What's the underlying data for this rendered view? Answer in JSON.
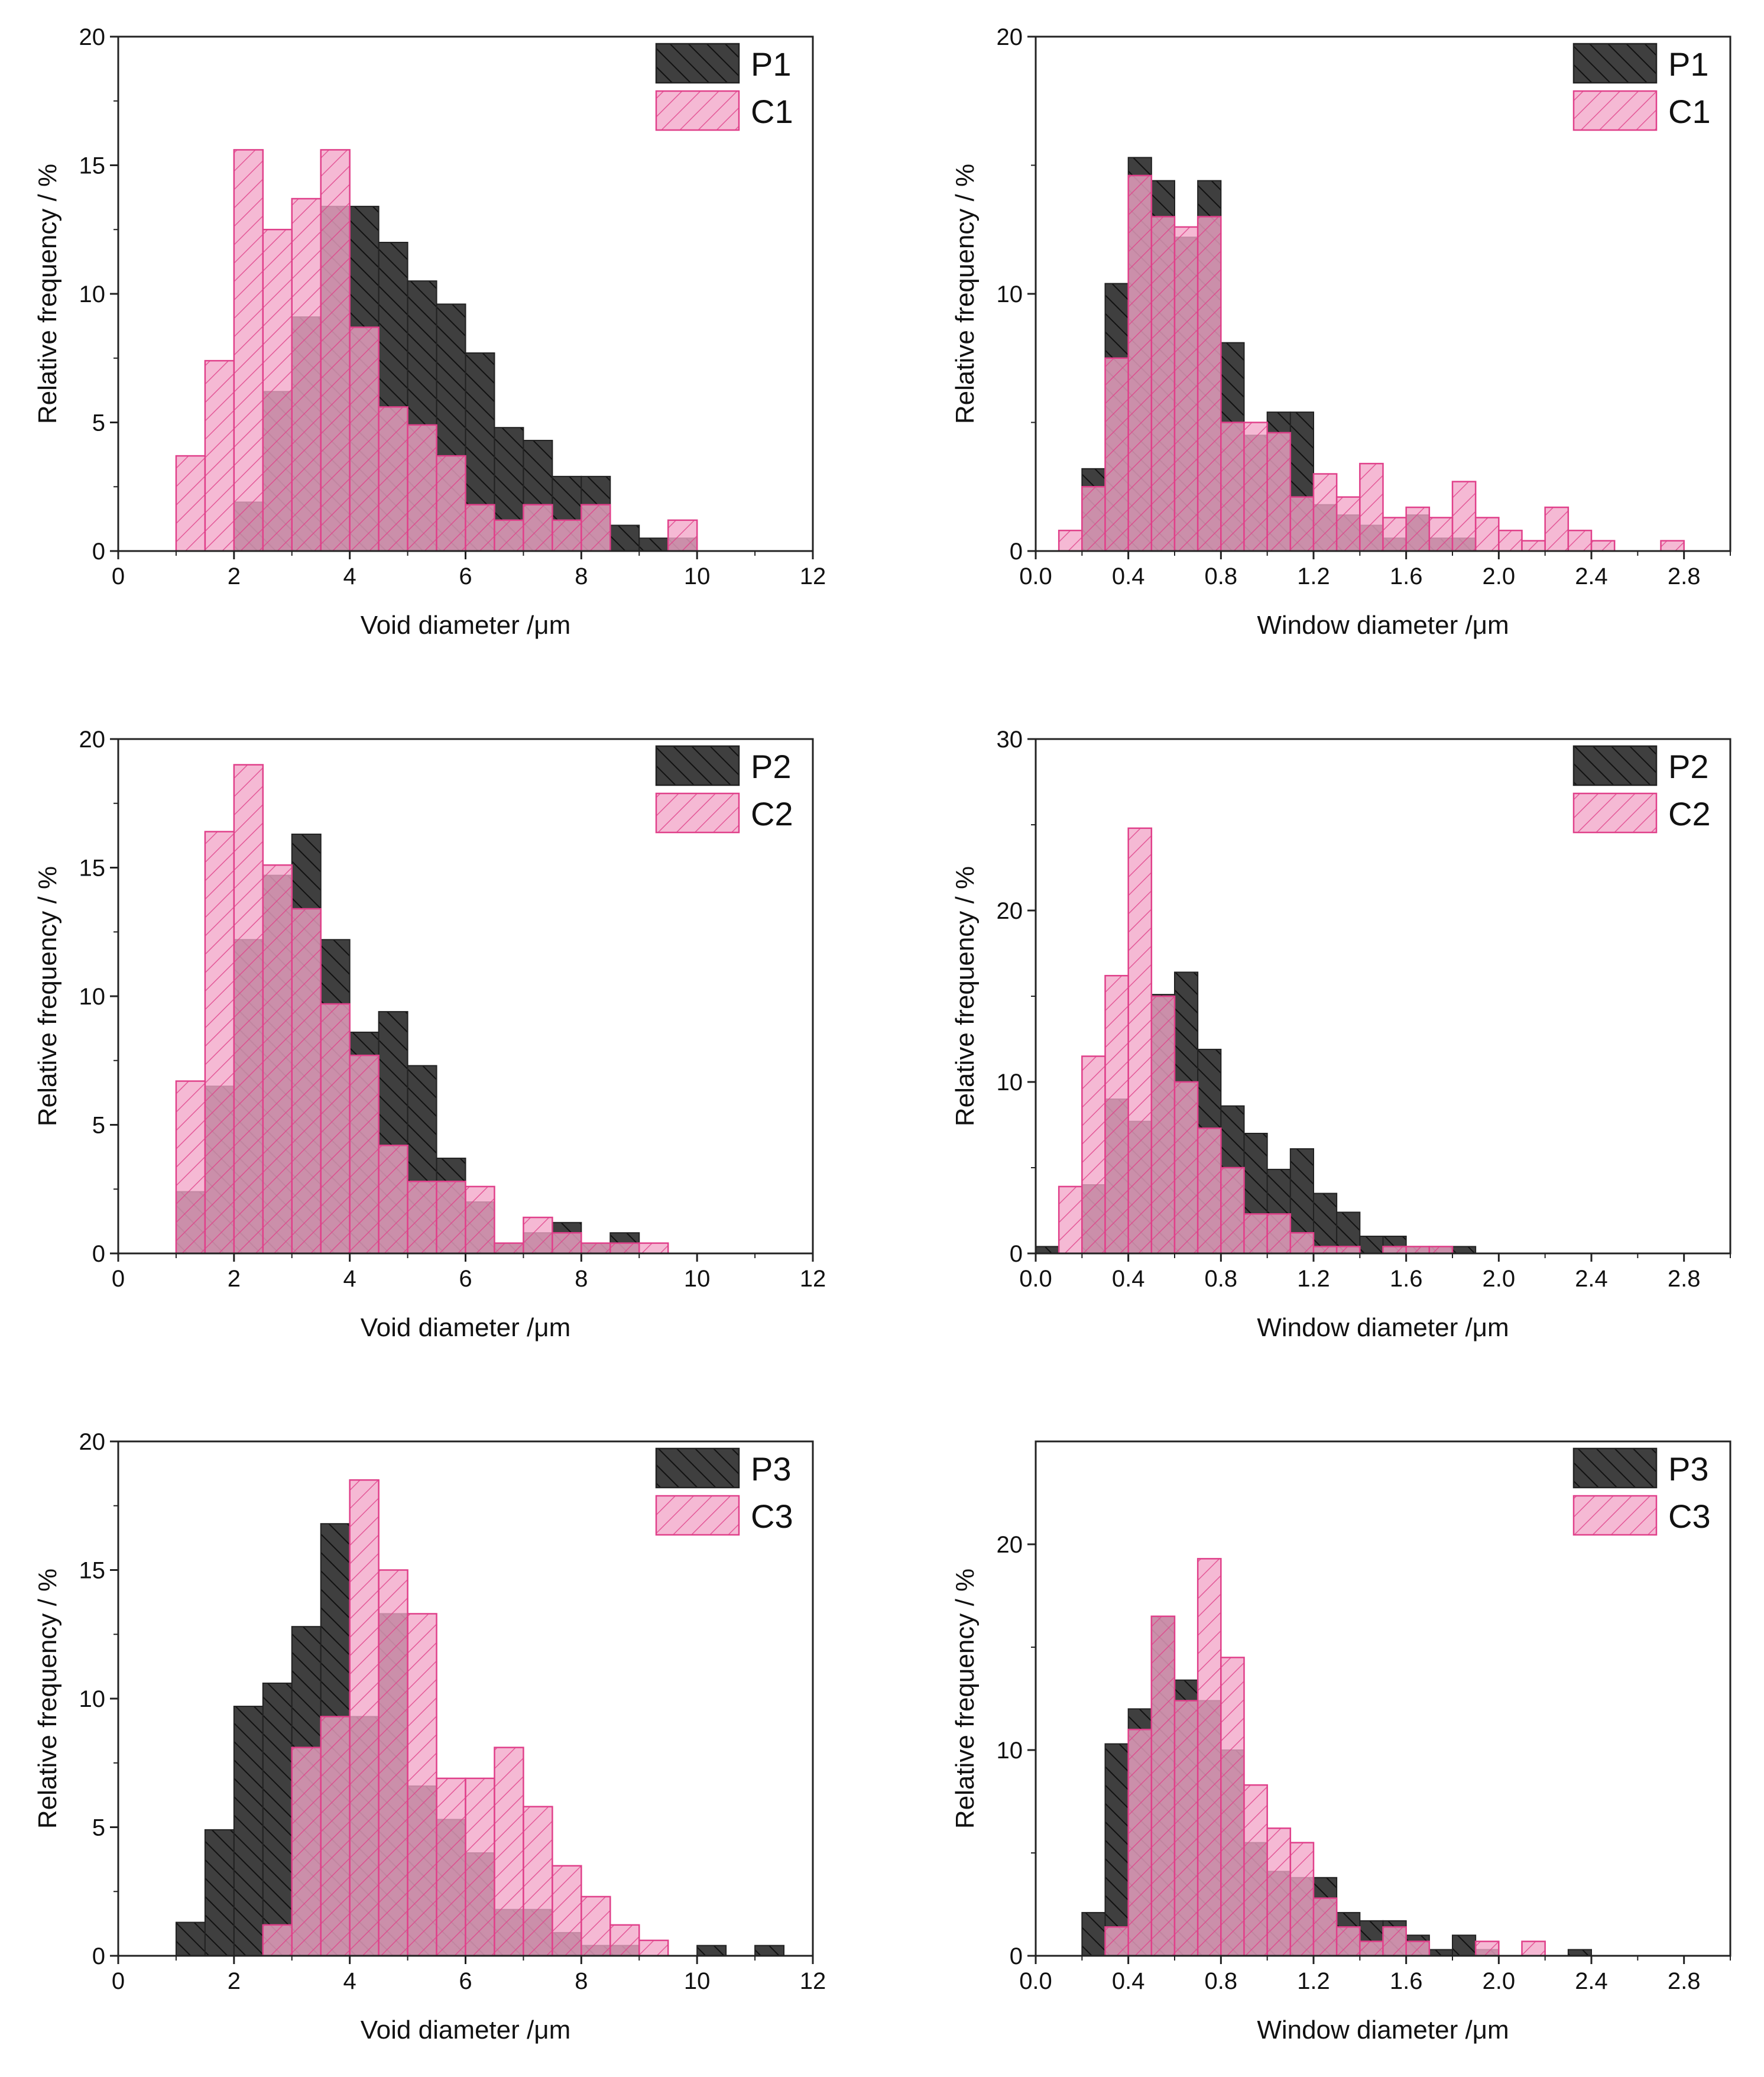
{
  "colors": {
    "p_fill": "#3f3f3f",
    "p_hatch": "#111111",
    "c_fill": "#f2a6c8",
    "c_hatch": "#e0408a",
    "c_stroke": "#e0408a",
    "overlap": "#7a1f46"
  },
  "chart_data": [
    {
      "type": "bar",
      "panel": "top-left",
      "xlabel": "Void diameter /μm",
      "ylabel": "Relative frequency / %",
      "xlim": [
        0,
        12
      ],
      "ylim": [
        0,
        20
      ],
      "xticks": [
        0,
        2,
        4,
        6,
        8,
        10,
        12
      ],
      "xtick_labels": [
        "0",
        "2",
        "4",
        "6",
        "8",
        "10",
        "12"
      ],
      "yticks": [
        0,
        5,
        10,
        15,
        20
      ],
      "ytick_labels": [
        "0",
        "5",
        "10",
        "15",
        "20"
      ],
      "bin_width": 0.5,
      "legend_position": "top-right",
      "series": [
        {
          "name": "P1",
          "kind": "P",
          "bins": [
            [
              2.0,
              1.9
            ],
            [
              2.5,
              6.2
            ],
            [
              3.0,
              9.1
            ],
            [
              3.5,
              13.4
            ],
            [
              4.0,
              13.4
            ],
            [
              4.5,
              12.0
            ],
            [
              5.0,
              10.5
            ],
            [
              5.5,
              9.6
            ],
            [
              6.0,
              7.7
            ],
            [
              6.5,
              4.8
            ],
            [
              7.0,
              4.3
            ],
            [
              7.5,
              2.9
            ],
            [
              8.0,
              2.9
            ],
            [
              8.5,
              1.0
            ],
            [
              9.0,
              0.5
            ],
            [
              9.5,
              0.5
            ]
          ]
        },
        {
          "name": "C1",
          "kind": "C",
          "bins": [
            [
              1.0,
              3.7
            ],
            [
              1.5,
              7.4
            ],
            [
              2.0,
              15.6
            ],
            [
              2.5,
              12.5
            ],
            [
              3.0,
              13.7
            ],
            [
              3.5,
              15.6
            ],
            [
              4.0,
              8.7
            ],
            [
              4.5,
              5.6
            ],
            [
              5.0,
              4.9
            ],
            [
              5.5,
              3.7
            ],
            [
              6.0,
              1.8
            ],
            [
              6.5,
              1.2
            ],
            [
              7.0,
              1.8
            ],
            [
              7.5,
              1.2
            ],
            [
              8.0,
              1.8
            ],
            [
              9.5,
              1.2
            ]
          ]
        }
      ]
    },
    {
      "type": "bar",
      "panel": "top-right",
      "xlabel": "Window diameter /μm",
      "ylabel": "Relative frequency / %",
      "xlim": [
        0,
        3.0
      ],
      "ylim": [
        0,
        20
      ],
      "xticks": [
        0.0,
        0.4,
        0.8,
        1.2,
        1.6,
        2.0,
        2.4,
        2.8
      ],
      "xtick_labels": [
        "0.0",
        "0.4",
        "0.8",
        "1.2",
        "1.6",
        "2.0",
        "2.4",
        "2.8"
      ],
      "yticks": [
        0,
        10,
        20
      ],
      "ytick_labels": [
        "0",
        "10",
        "20"
      ],
      "bin_width": 0.1,
      "legend_position": "top-right",
      "series": [
        {
          "name": "P1",
          "kind": "P",
          "bins": [
            [
              0.2,
              3.2
            ],
            [
              0.3,
              10.4
            ],
            [
              0.4,
              15.3
            ],
            [
              0.5,
              14.4
            ],
            [
              0.6,
              12.2
            ],
            [
              0.7,
              14.4
            ],
            [
              0.8,
              8.1
            ],
            [
              0.9,
              4.5
            ],
            [
              1.0,
              5.4
            ],
            [
              1.1,
              5.4
            ],
            [
              1.2,
              1.8
            ],
            [
              1.3,
              1.4
            ],
            [
              1.4,
              1.0
            ],
            [
              1.5,
              0.5
            ],
            [
              1.6,
              1.4
            ],
            [
              1.7,
              0.5
            ],
            [
              1.8,
              0.5
            ]
          ]
        },
        {
          "name": "C1",
          "kind": "C",
          "bins": [
            [
              0.1,
              0.8
            ],
            [
              0.2,
              2.5
            ],
            [
              0.3,
              7.5
            ],
            [
              0.4,
              14.6
            ],
            [
              0.5,
              13.0
            ],
            [
              0.6,
              12.6
            ],
            [
              0.7,
              13.0
            ],
            [
              0.8,
              5.0
            ],
            [
              0.9,
              5.0
            ],
            [
              1.0,
              4.6
            ],
            [
              1.1,
              2.1
            ],
            [
              1.2,
              3.0
            ],
            [
              1.3,
              2.1
            ],
            [
              1.4,
              3.4
            ],
            [
              1.5,
              1.3
            ],
            [
              1.6,
              1.7
            ],
            [
              1.7,
              1.3
            ],
            [
              1.8,
              2.7
            ],
            [
              1.9,
              1.3
            ],
            [
              2.0,
              0.8
            ],
            [
              2.1,
              0.4
            ],
            [
              2.2,
              1.7
            ],
            [
              2.3,
              0.8
            ],
            [
              2.4,
              0.4
            ],
            [
              2.7,
              0.4
            ]
          ]
        }
      ]
    },
    {
      "type": "bar",
      "panel": "middle-left",
      "xlabel": "Void diameter /μm",
      "ylabel": "Relative frequency / %",
      "xlim": [
        0,
        12
      ],
      "ylim": [
        0,
        20
      ],
      "xticks": [
        0,
        2,
        4,
        6,
        8,
        10,
        12
      ],
      "xtick_labels": [
        "0",
        "2",
        "4",
        "6",
        "8",
        "10",
        "12"
      ],
      "yticks": [
        0,
        5,
        10,
        15,
        20
      ],
      "ytick_labels": [
        "0",
        "5",
        "10",
        "15",
        "20"
      ],
      "bin_width": 0.5,
      "legend_position": "top-right",
      "series": [
        {
          "name": "P2",
          "kind": "P",
          "bins": [
            [
              1.0,
              2.4
            ],
            [
              1.5,
              6.5
            ],
            [
              2.0,
              12.2
            ],
            [
              2.5,
              14.7
            ],
            [
              3.0,
              16.3
            ],
            [
              3.5,
              12.2
            ],
            [
              4.0,
              8.6
            ],
            [
              4.5,
              9.4
            ],
            [
              5.0,
              7.3
            ],
            [
              5.5,
              3.7
            ],
            [
              6.0,
              2.0
            ],
            [
              6.5,
              0.4
            ],
            [
              7.0,
              0.8
            ],
            [
              7.5,
              1.2
            ],
            [
              8.0,
              0.4
            ],
            [
              8.5,
              0.8
            ]
          ]
        },
        {
          "name": "C2",
          "kind": "C",
          "bins": [
            [
              1.0,
              6.7
            ],
            [
              1.5,
              16.4
            ],
            [
              2.0,
              19.0
            ],
            [
              2.5,
              15.1
            ],
            [
              3.0,
              13.4
            ],
            [
              3.5,
              9.7
            ],
            [
              4.0,
              7.7
            ],
            [
              4.5,
              4.2
            ],
            [
              5.0,
              2.8
            ],
            [
              5.5,
              2.8
            ],
            [
              6.0,
              2.6
            ],
            [
              6.5,
              0.4
            ],
            [
              7.0,
              1.4
            ],
            [
              7.5,
              0.8
            ],
            [
              8.0,
              0.4
            ],
            [
              8.5,
              0.4
            ],
            [
              9.0,
              0.4
            ]
          ]
        }
      ]
    },
    {
      "type": "bar",
      "panel": "middle-right",
      "xlabel": "Window diameter /μm",
      "ylabel": "Relative frequency / %",
      "xlim": [
        0,
        3.0
      ],
      "ylim": [
        0,
        30
      ],
      "xticks": [
        0.0,
        0.4,
        0.8,
        1.2,
        1.6,
        2.0,
        2.4,
        2.8
      ],
      "xtick_labels": [
        "0.0",
        "0.4",
        "0.8",
        "1.2",
        "1.6",
        "2.0",
        "2.4",
        "2.8"
      ],
      "yticks": [
        0,
        10,
        20,
        30
      ],
      "ytick_labels": [
        "0",
        "10",
        "20",
        "30"
      ],
      "bin_width": 0.1,
      "legend_position": "top-right",
      "series": [
        {
          "name": "P2",
          "kind": "P",
          "bins": [
            [
              0.0,
              0.4
            ],
            [
              0.2,
              4.0
            ],
            [
              0.3,
              9.0
            ],
            [
              0.4,
              7.7
            ],
            [
              0.5,
              15.1
            ],
            [
              0.6,
              16.4
            ],
            [
              0.7,
              11.9
            ],
            [
              0.8,
              8.6
            ],
            [
              0.9,
              7.0
            ],
            [
              1.0,
              4.9
            ],
            [
              1.1,
              6.1
            ],
            [
              1.2,
              3.5
            ],
            [
              1.3,
              2.4
            ],
            [
              1.4,
              1.0
            ],
            [
              1.5,
              1.0
            ],
            [
              1.6,
              0.4
            ],
            [
              1.7,
              0.4
            ],
            [
              1.8,
              0.4
            ]
          ]
        },
        {
          "name": "C2",
          "kind": "C",
          "bins": [
            [
              0.1,
              3.9
            ],
            [
              0.2,
              11.5
            ],
            [
              0.3,
              16.2
            ],
            [
              0.4,
              24.8
            ],
            [
              0.5,
              15.0
            ],
            [
              0.6,
              10.0
            ],
            [
              0.7,
              7.3
            ],
            [
              0.8,
              5.0
            ],
            [
              0.9,
              2.3
            ],
            [
              1.0,
              2.3
            ],
            [
              1.1,
              1.2
            ],
            [
              1.2,
              0.4
            ],
            [
              1.3,
              0.4
            ],
            [
              1.5,
              0.4
            ],
            [
              1.6,
              0.4
            ],
            [
              1.7,
              0.4
            ]
          ]
        }
      ]
    },
    {
      "type": "bar",
      "panel": "bottom-left",
      "xlabel": "Void diameter /μm",
      "ylabel": "Relative frequency / %",
      "xlim": [
        0,
        12
      ],
      "ylim": [
        0,
        20
      ],
      "xticks": [
        0,
        2,
        4,
        6,
        8,
        10,
        12
      ],
      "xtick_labels": [
        "0",
        "2",
        "4",
        "6",
        "8",
        "10",
        "12"
      ],
      "yticks": [
        0,
        5,
        10,
        15,
        20
      ],
      "ytick_labels": [
        "0",
        "5",
        "10",
        "15",
        "20"
      ],
      "bin_width": 0.5,
      "legend_position": "top-right",
      "series": [
        {
          "name": "P3",
          "kind": "P",
          "bins": [
            [
              1.0,
              1.3
            ],
            [
              1.5,
              4.9
            ],
            [
              2.0,
              9.7
            ],
            [
              2.5,
              10.6
            ],
            [
              3.0,
              12.8
            ],
            [
              3.5,
              16.8
            ],
            [
              4.0,
              9.3
            ],
            [
              4.5,
              13.3
            ],
            [
              5.0,
              6.6
            ],
            [
              5.5,
              5.3
            ],
            [
              6.0,
              4.0
            ],
            [
              6.5,
              1.8
            ],
            [
              7.0,
              1.8
            ],
            [
              7.5,
              0.9
            ],
            [
              8.0,
              0.4
            ],
            [
              8.5,
              0.4
            ],
            [
              10.0,
              0.4
            ],
            [
              11.0,
              0.4
            ]
          ]
        },
        {
          "name": "C3",
          "kind": "C",
          "bins": [
            [
              2.5,
              1.2
            ],
            [
              3.0,
              8.1
            ],
            [
              3.5,
              9.3
            ],
            [
              4.0,
              18.5
            ],
            [
              4.5,
              15.0
            ],
            [
              5.0,
              13.3
            ],
            [
              5.5,
              6.9
            ],
            [
              6.0,
              6.9
            ],
            [
              6.5,
              8.1
            ],
            [
              7.0,
              5.8
            ],
            [
              7.5,
              3.5
            ],
            [
              8.0,
              2.3
            ],
            [
              8.5,
              1.2
            ],
            [
              9.0,
              0.6
            ]
          ]
        }
      ]
    },
    {
      "type": "bar",
      "panel": "bottom-right",
      "xlabel": "Window diameter /μm",
      "ylabel": "Relative frequency / %",
      "xlim": [
        0,
        3.0
      ],
      "ylim": [
        0,
        25
      ],
      "xticks": [
        0.0,
        0.4,
        0.8,
        1.2,
        1.6,
        2.0,
        2.4,
        2.8
      ],
      "xtick_labels": [
        "0.0",
        "0.4",
        "0.8",
        "1.2",
        "1.6",
        "2.0",
        "2.4",
        "2.8"
      ],
      "yticks": [
        0,
        10,
        20
      ],
      "ytick_labels": [
        "0",
        "10",
        "20"
      ],
      "bin_width": 0.1,
      "legend_position": "top-right",
      "series": [
        {
          "name": "P3",
          "kind": "P",
          "bins": [
            [
              0.2,
              2.1
            ],
            [
              0.3,
              10.3
            ],
            [
              0.4,
              12.0
            ],
            [
              0.5,
              16.5
            ],
            [
              0.6,
              13.4
            ],
            [
              0.7,
              12.4
            ],
            [
              0.8,
              10.0
            ],
            [
              0.9,
              5.5
            ],
            [
              1.0,
              4.1
            ],
            [
              1.1,
              3.8
            ],
            [
              1.2,
              3.8
            ],
            [
              1.3,
              2.1
            ],
            [
              1.4,
              1.7
            ],
            [
              1.5,
              1.7
            ],
            [
              1.6,
              1.0
            ],
            [
              1.7,
              0.3
            ],
            [
              1.8,
              1.0
            ],
            [
              1.9,
              0.3
            ],
            [
              2.3,
              0.3
            ]
          ]
        },
        {
          "name": "C3",
          "kind": "C",
          "bins": [
            [
              0.3,
              1.4
            ],
            [
              0.4,
              11.0
            ],
            [
              0.5,
              16.5
            ],
            [
              0.6,
              12.4
            ],
            [
              0.7,
              19.3
            ],
            [
              0.8,
              14.5
            ],
            [
              0.9,
              8.3
            ],
            [
              1.0,
              6.2
            ],
            [
              1.1,
              5.5
            ],
            [
              1.2,
              2.8
            ],
            [
              1.3,
              1.4
            ],
            [
              1.4,
              0.7
            ],
            [
              1.5,
              1.4
            ],
            [
              1.6,
              0.7
            ],
            [
              1.9,
              0.7
            ],
            [
              2.1,
              0.7
            ]
          ]
        }
      ]
    }
  ]
}
